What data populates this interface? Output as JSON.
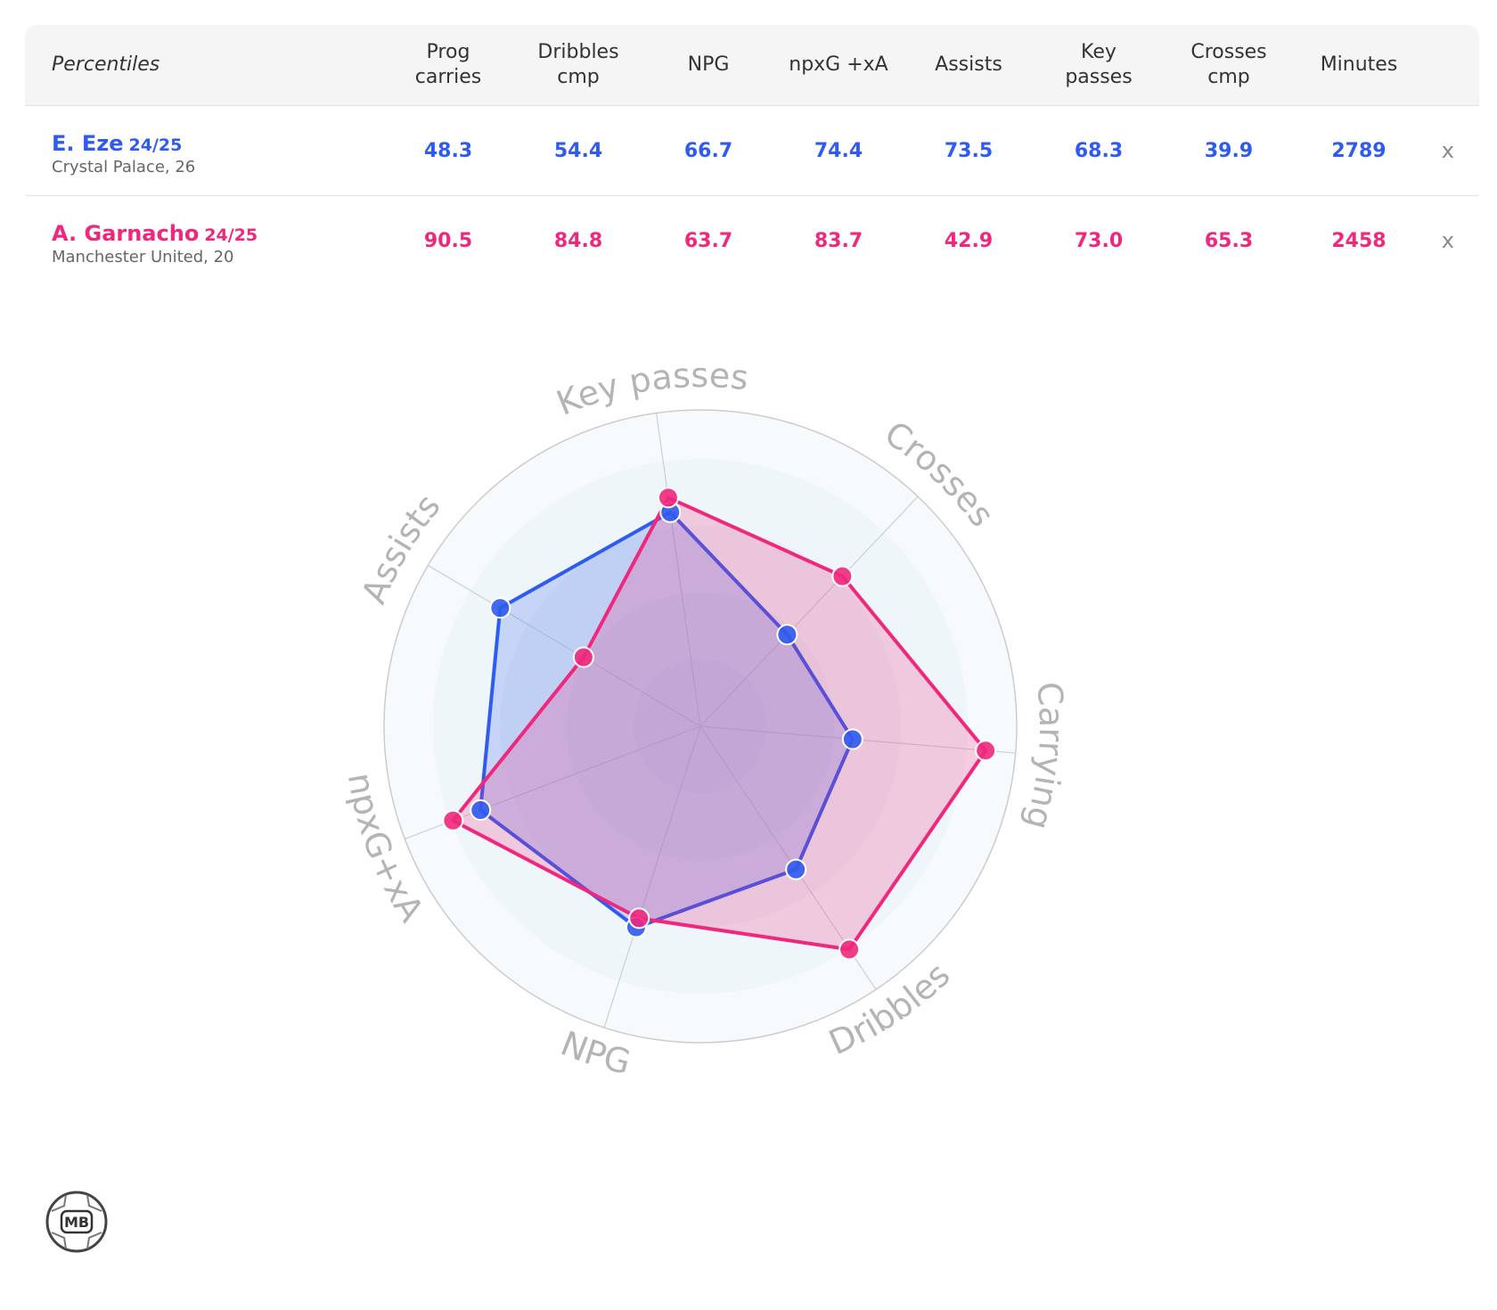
{
  "table": {
    "header_label": "Percentiles",
    "columns": [
      "Prog\ncarries",
      "Dribbles\ncmp",
      "NPG",
      "npxG +xA",
      "Assists",
      "Key\npasses",
      "Crosses\ncmp",
      "Minutes"
    ],
    "remove_label": "x"
  },
  "players": [
    {
      "name": "E. Eze",
      "season": "24/25",
      "meta": "Crystal Palace, 26",
      "color": "#2f5bf0",
      "values": [
        "48.3",
        "54.4",
        "66.7",
        "74.4",
        "73.5",
        "68.3",
        "39.9",
        "2789"
      ]
    },
    {
      "name": "A. Garnacho",
      "season": "24/25",
      "meta": "Manchester United, 20",
      "color": "#f0287d",
      "values": [
        "90.5",
        "84.8",
        "63.7",
        "83.7",
        "42.9",
        "73.0",
        "65.3",
        "2458"
      ]
    }
  ],
  "chart_data": {
    "type": "radar",
    "axes": [
      "Key passes",
      "Crosses",
      "Carrying",
      "Dribbles",
      "NPG",
      "npxG+xA",
      "Assists"
    ],
    "range": [
      0,
      100
    ],
    "series": [
      {
        "name": "E. Eze",
        "color": "#2f5bf0",
        "values": [
          68.3,
          39.9,
          48.3,
          54.4,
          66.7,
          74.4,
          73.5
        ]
      },
      {
        "name": "A. Garnacho",
        "color": "#f0287d",
        "values": [
          73.0,
          65.3,
          90.5,
          84.8,
          63.7,
          83.7,
          42.9
        ]
      }
    ]
  },
  "logo": {
    "text": "MB"
  }
}
